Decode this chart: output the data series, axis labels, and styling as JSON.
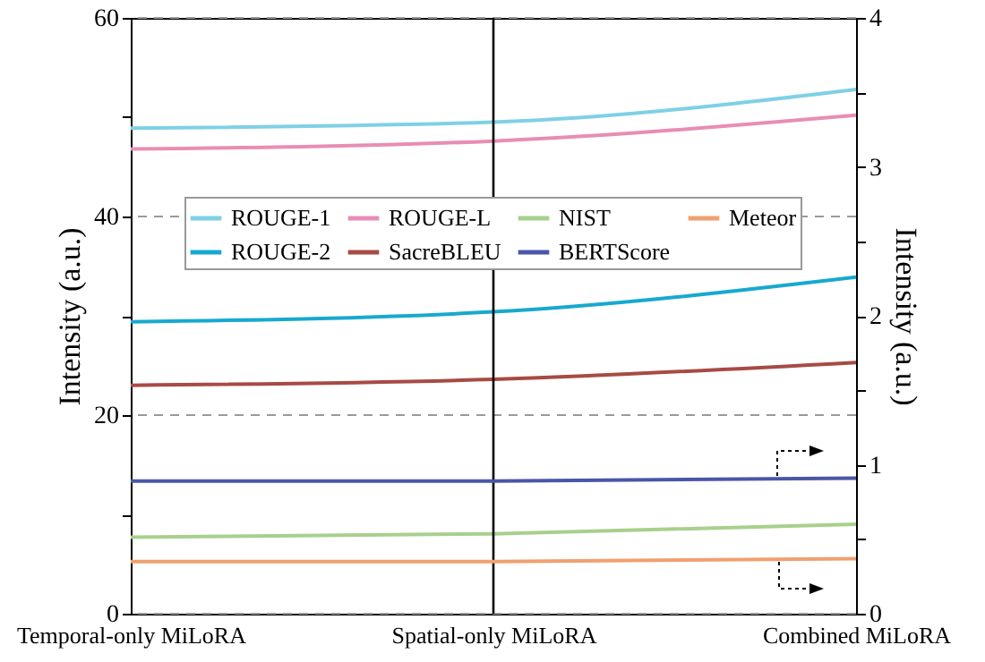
{
  "chart_data": {
    "type": "line",
    "ylabel": "Intensity (a.u.)",
    "y2label": "Intensity (a.u.)",
    "categories": [
      "Temporal-only MiLoRA",
      "Spatial-only MiLoRA",
      "Combined MiLoRA"
    ],
    "series": [
      {
        "name": "ROUGE-1",
        "color": "#7fd0e6",
        "values": [
          48.9,
          49.5,
          52.8
        ]
      },
      {
        "name": "ROUGE-2",
        "color": "#17a9cf",
        "values": [
          29.4,
          30.4,
          33.9
        ]
      },
      {
        "name": "ROUGE-L",
        "color": "#e88db5",
        "values": [
          46.8,
          47.6,
          50.2
        ]
      },
      {
        "name": "SacreBLEU",
        "color": "#a84a45",
        "values": [
          23.0,
          23.6,
          25.3
        ]
      },
      {
        "name": "NIST",
        "color": "#a8d08d",
        "values": [
          7.7,
          8.05,
          9.0
        ]
      },
      {
        "name": "BERTScore",
        "color": "#4a56a6",
        "axis": "y2",
        "values": [
          0.89,
          0.89,
          0.91
        ]
      },
      {
        "name": "Meteor",
        "color": "#f0a070",
        "axis": "y2",
        "values": [
          0.35,
          0.35,
          0.37
        ]
      }
    ],
    "ylim": [
      0,
      60
    ],
    "yticks": [
      0,
      {
        "value": 10,
        "label": null
      },
      20,
      {
        "value": 30,
        "label": null
      },
      40,
      {
        "value": 50,
        "label": null
      },
      60
    ],
    "y2lim": [
      0,
      4
    ],
    "y2ticks": [
      0,
      {
        "value": 0.5,
        "label": null
      },
      1,
      {
        "value": 1.5,
        "label": null
      },
      2,
      {
        "value": 2.5,
        "label": null
      },
      3,
      {
        "value": 3.5,
        "label": null
      },
      4
    ],
    "grid": "y",
    "legend": "top",
    "line_style": "solid",
    "marker": "none",
    "ref_lines": [
      {
        "axis": "x",
        "value": "Spatial-only MiLoRA",
        "color": "#000000"
      }
    ]
  }
}
